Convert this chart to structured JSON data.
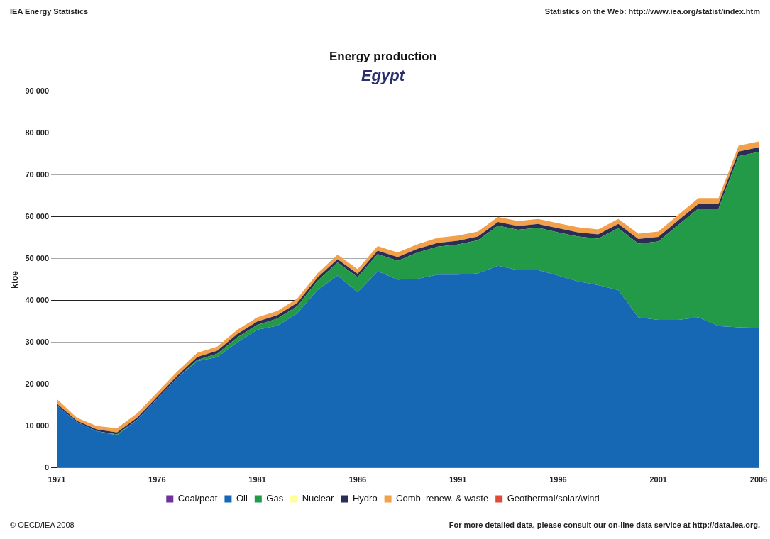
{
  "chart_data": {
    "type": "area",
    "title": "Energy production",
    "subtitle": "Egypt",
    "ylabel": "ktoe",
    "stacked": true,
    "x": [
      1971,
      1972,
      1973,
      1974,
      1975,
      1976,
      1977,
      1978,
      1979,
      1980,
      1981,
      1982,
      1983,
      1984,
      1985,
      1986,
      1987,
      1988,
      1989,
      1990,
      1991,
      1992,
      1993,
      1994,
      1995,
      1996,
      1997,
      1998,
      1999,
      2000,
      2001,
      2002,
      2003,
      2004,
      2005,
      2006
    ],
    "series": [
      {
        "name": "Coal/peat",
        "color": "#7030a0",
        "values": [
          null,
          null,
          null,
          null,
          null,
          null,
          null,
          null,
          null,
          null,
          null,
          null,
          null,
          null,
          null,
          null,
          null,
          null,
          null,
          null,
          null,
          null,
          null,
          null,
          null,
          null,
          null,
          null,
          null,
          null,
          null,
          null,
          null,
          null,
          null,
          null
        ]
      },
      {
        "name": "Oil",
        "color": "#1768b4",
        "values": [
          15000,
          11000,
          8800,
          7800,
          11500,
          16500,
          21500,
          25500,
          26500,
          30000,
          33000,
          34000,
          37000,
          42500,
          46000,
          42000,
          47000,
          45000,
          45200,
          46200,
          46200,
          46500,
          48300,
          47300,
          47300,
          46000,
          44600,
          43700,
          42500,
          36000,
          35400,
          35400,
          36000,
          33900,
          33600,
          33500
        ]
      },
      {
        "name": "Gas",
        "color": "#239a48",
        "values": [
          0,
          0,
          0,
          200,
          0,
          0,
          0,
          300,
          800,
          1200,
          1200,
          1700,
          1700,
          2200,
          3100,
          3600,
          4100,
          4500,
          6300,
          6700,
          7200,
          7900,
          9600,
          9600,
          10100,
          10300,
          10700,
          11100,
          14800,
          17600,
          18700,
          22700,
          26000,
          28100,
          40900,
          42000
        ]
      },
      {
        "name": "Nuclear",
        "color": "#ffff99",
        "values": [
          null,
          null,
          null,
          null,
          null,
          null,
          null,
          null,
          null,
          null,
          null,
          null,
          null,
          null,
          null,
          null,
          null,
          null,
          null,
          null,
          null,
          null,
          null,
          null,
          null,
          null,
          null,
          null,
          null,
          null,
          null,
          null,
          null,
          null,
          null,
          null
        ]
      },
      {
        "name": "Hydro",
        "color": "#2b2d55",
        "values": [
          400,
          300,
          400,
          500,
          500,
          500,
          500,
          700,
          700,
          800,
          800,
          800,
          800,
          800,
          800,
          800,
          800,
          900,
          900,
          900,
          900,
          900,
          900,
          900,
          900,
          1000,
          1000,
          1000,
          1000,
          1100,
          1100,
          1100,
          1100,
          1100,
          1100,
          1100
        ]
      },
      {
        "name": "Comb. renew. & waste",
        "color": "#f2a04a",
        "values": [
          1100,
          700,
          800,
          1000,
          1000,
          1000,
          1000,
          1000,
          1000,
          1000,
          1000,
          1000,
          1000,
          1000,
          1100,
          1100,
          1100,
          1100,
          1100,
          1200,
          1200,
          1200,
          1200,
          1200,
          1200,
          1200,
          1200,
          1200,
          1200,
          1300,
          1300,
          1300,
          1400,
          1400,
          1400,
          1400
        ]
      },
      {
        "name": "Geothermal/solar/wind",
        "color": "#e04a3a",
        "values": [
          null,
          null,
          null,
          null,
          null,
          null,
          null,
          null,
          null,
          null,
          null,
          null,
          null,
          null,
          null,
          null,
          null,
          null,
          null,
          null,
          null,
          null,
          null,
          null,
          null,
          null,
          null,
          null,
          null,
          null,
          null,
          null,
          null,
          null,
          null,
          null
        ]
      }
    ],
    "xlim": [
      1971,
      2006
    ],
    "xticks": [
      1971,
      1976,
      1981,
      1986,
      1991,
      1996,
      2001,
      2006
    ],
    "ylim": [
      0,
      90000
    ],
    "yticks": [
      {
        "value": 0,
        "label": "0"
      },
      {
        "value": 10000,
        "label": "10 000"
      },
      {
        "value": 20000,
        "label": "20 000"
      },
      {
        "value": 30000,
        "label": "30 000"
      },
      {
        "value": 40000,
        "label": "40 000"
      },
      {
        "value": 50000,
        "label": "50 000"
      },
      {
        "value": 60000,
        "label": "60 000"
      },
      {
        "value": 70000,
        "label": "70 000"
      },
      {
        "value": 80000,
        "label": "80 000"
      },
      {
        "value": 90000,
        "label": "90 000"
      }
    ],
    "grid": "y",
    "legend": "bottom",
    "annotations": [
      "IEA Energy Statistics",
      "Statistics on the Web: http://www.iea.org/statist/index.htm",
      "© OECD/IEA 2008",
      "For more detailed data, please consult our on-line data service at http://data.iea.org."
    ]
  }
}
